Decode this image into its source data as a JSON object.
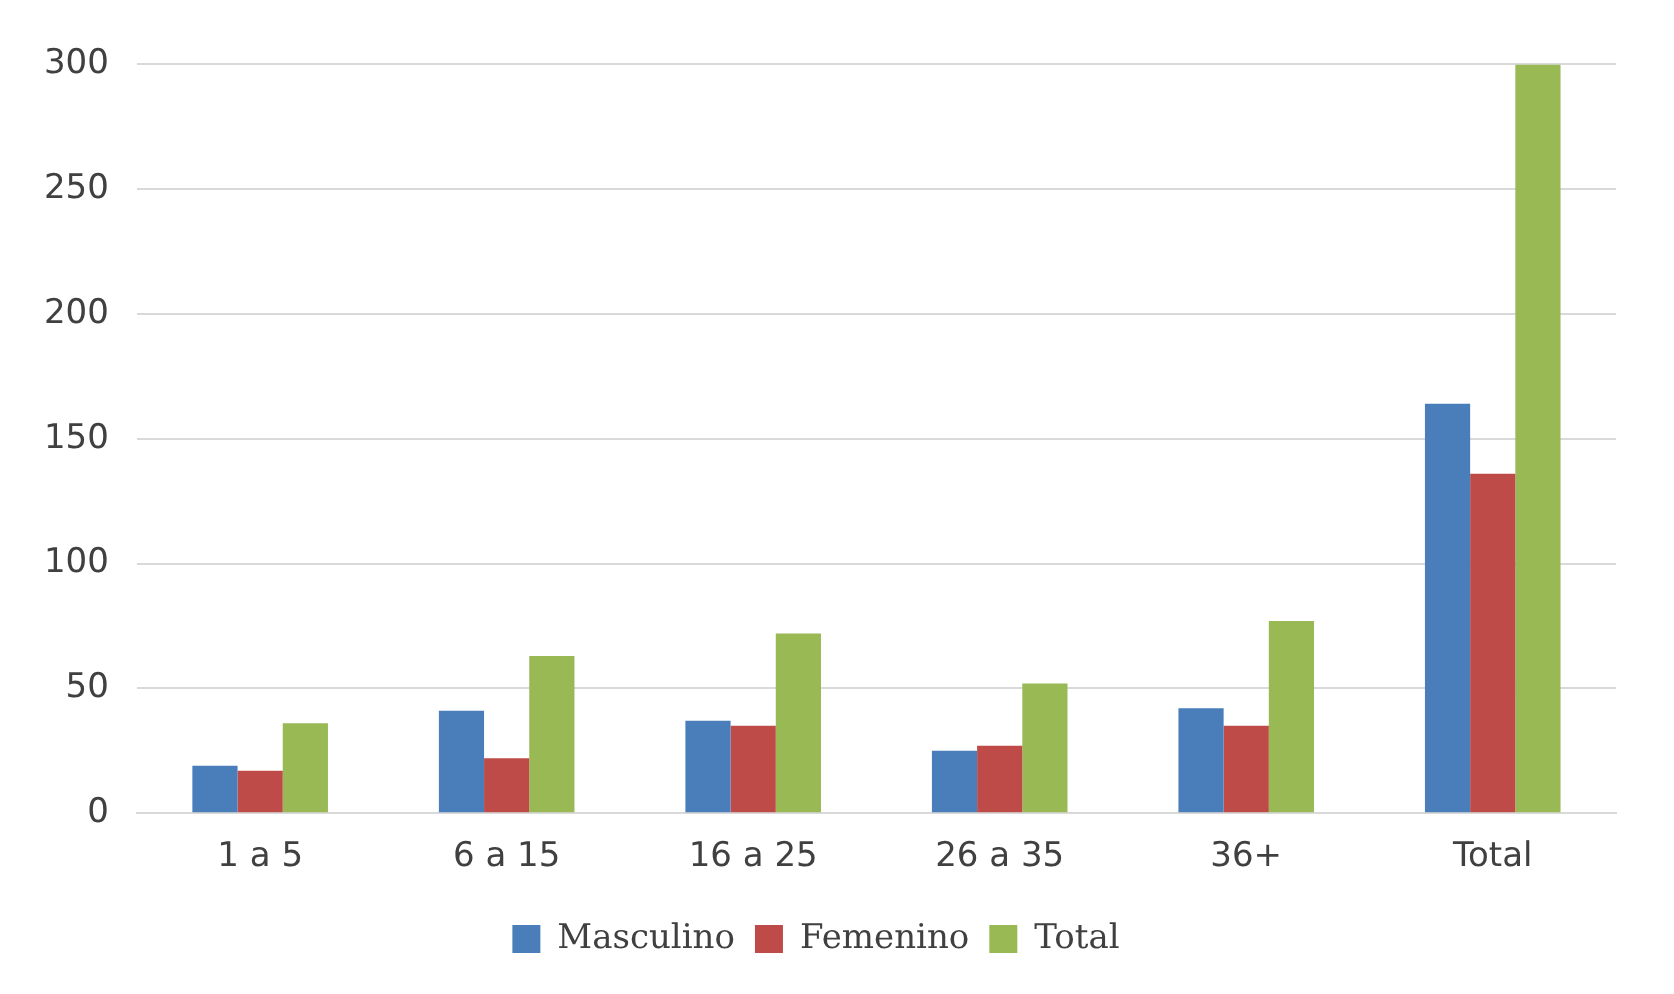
{
  "chart_data": {
    "type": "bar",
    "categories": [
      "1 a 5",
      "6 a 15",
      "16 a 25",
      "26 a 35",
      "36+",
      "Total"
    ],
    "series": [
      {
        "name": "Masculino",
        "color": "#4a7ebb",
        "values": [
          19,
          41,
          37,
          25,
          42,
          164
        ]
      },
      {
        "name": "Femenino",
        "color": "#be4b48",
        "values": [
          17,
          22,
          35,
          27,
          35,
          136
        ]
      },
      {
        "name": "Total",
        "color": "#98b954",
        "values": [
          36,
          63,
          72,
          52,
          77,
          300
        ]
      }
    ],
    "ylim": [
      0,
      300
    ],
    "yticks": [
      0,
      50,
      100,
      150,
      200,
      250,
      300
    ],
    "grid": "y",
    "legend": "bottom"
  }
}
